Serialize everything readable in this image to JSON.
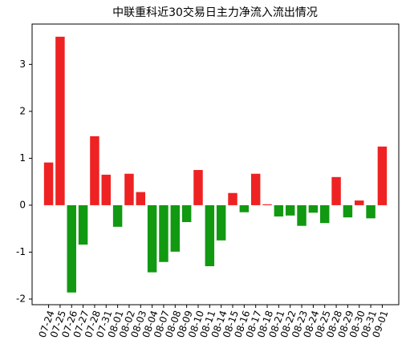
{
  "chart_data": {
    "type": "bar",
    "title": "中联重科近30交易日主力净流入流出情况",
    "categories": [
      "07-24",
      "07-25",
      "07-26",
      "07-27",
      "07-28",
      "07-31",
      "08-01",
      "08-02",
      "08-03",
      "08-04",
      "08-07",
      "08-08",
      "08-09",
      "08-10",
      "08-11",
      "08-14",
      "08-15",
      "08-16",
      "08-17",
      "08-18",
      "08-21",
      "08-22",
      "08-23",
      "08-24",
      "08-25",
      "08-28",
      "08-29",
      "08-30",
      "08-31",
      "09-01"
    ],
    "values": [
      0.91,
      3.59,
      -1.86,
      -0.84,
      1.47,
      0.65,
      -0.46,
      0.67,
      0.28,
      -1.43,
      -1.21,
      -0.99,
      -0.36,
      0.75,
      -1.3,
      -0.75,
      0.26,
      -0.15,
      0.67,
      0.02,
      -0.24,
      -0.22,
      -0.44,
      -0.16,
      -0.38,
      0.6,
      -0.26,
      0.1,
      -0.28,
      1.25
    ],
    "positive_color": "#ee2222",
    "negative_color": "#119911",
    "ylim": [
      -2.12,
      3.86
    ],
    "yticks": [
      -2,
      -1,
      0,
      1,
      2,
      3
    ],
    "grid": false
  }
}
